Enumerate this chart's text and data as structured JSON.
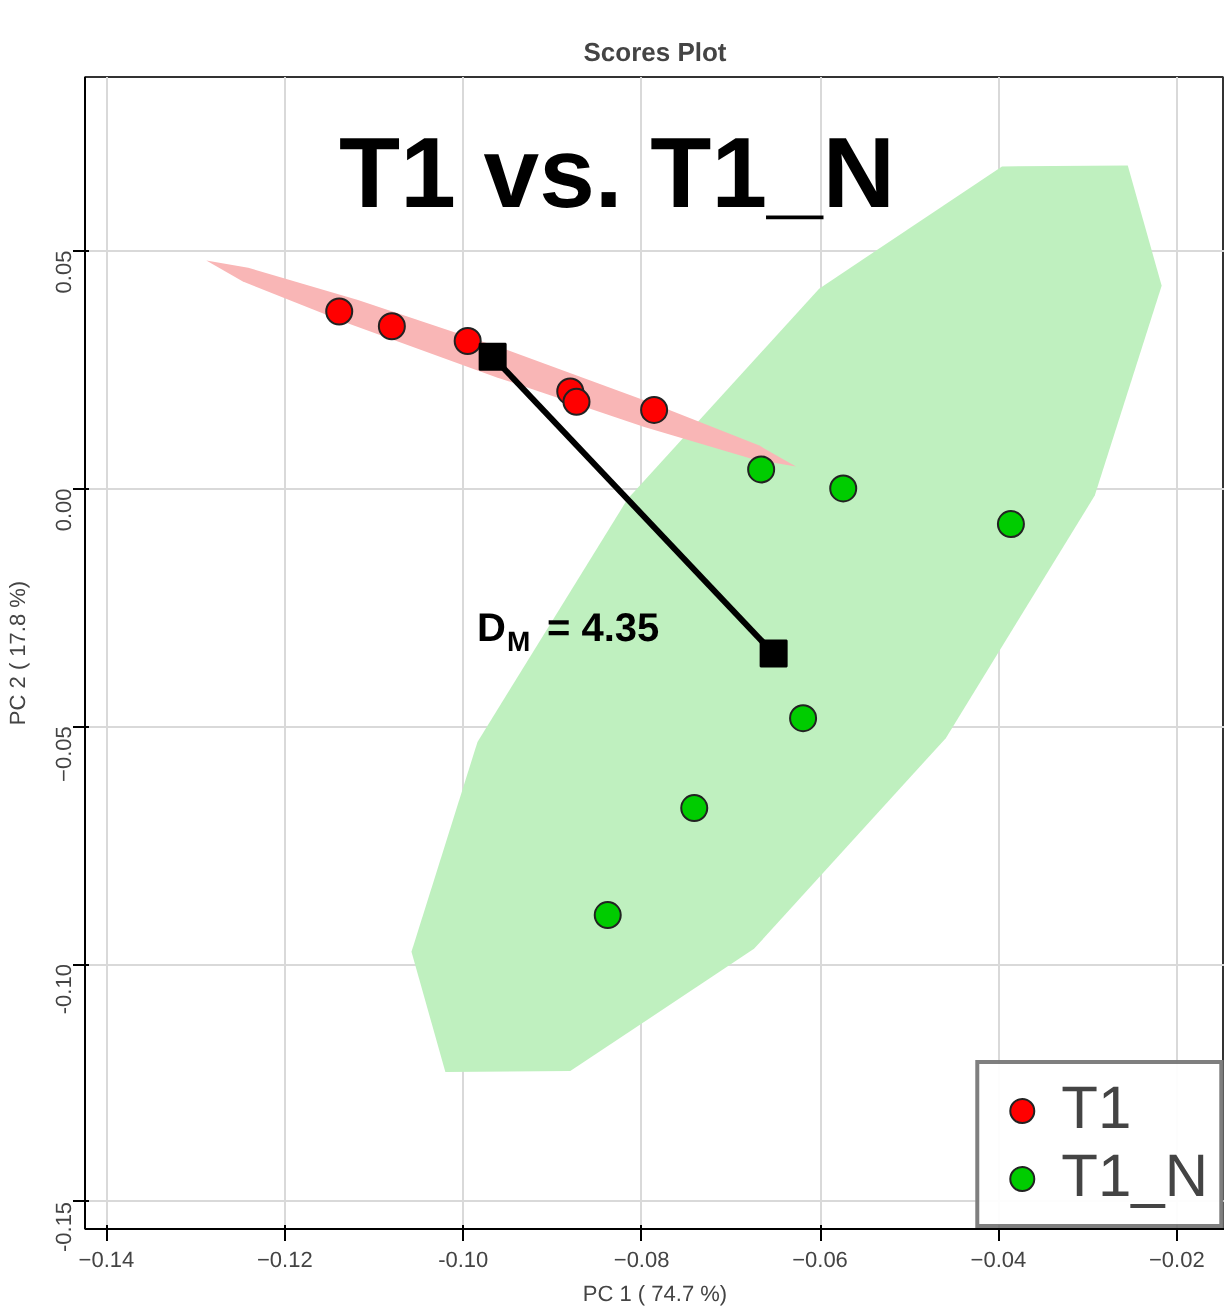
{
  "chart_data": {
    "type": "scatter",
    "title": "Scores Plot",
    "subtitle": "T1 vs. T1_N",
    "xlabel": "PC 1 ( 74.7 %)",
    "ylabel": "PC 2 ( 17.8 %)",
    "xlim": [
      -0.1424,
      -0.0146
    ],
    "ylim": [
      -0.1557,
      0.0865
    ],
    "xticks": [
      -0.14,
      -0.12,
      {
        "value": -0.1,
        "label": "-0.10"
      },
      -0.08,
      -0.06,
      -0.04,
      -0.02
    ],
    "yticks": [
      {
        "value": -0.15,
        "label": "-0.15"
      },
      {
        "value": -0.1,
        "label": "-0.10"
      },
      -0.05,
      {
        "value": 0,
        "label": "0.00"
      },
      0.05
    ],
    "grid": true,
    "legend": "bottom right",
    "marker": "circle",
    "series": [
      {
        "type": "area",
        "marker": "none",
        "color": "#bff0bf",
        "x": [
          -0.0255,
          -0.0217,
          -0.0292,
          -0.0459,
          -0.0674,
          -0.088,
          -0.102,
          -0.1058,
          -0.0984,
          -0.0816,
          -0.0601,
          -0.0396
        ],
        "values": [
          0.0679,
          0.0426,
          -0.0015,
          -0.0525,
          -0.0968,
          -0.1225,
          -0.1227,
          -0.0974,
          -0.0533,
          -0.0023,
          0.042,
          0.0677
        ]
      },
      {
        "type": "area",
        "marker": "none",
        "color": "#f9b6b6",
        "x": [
          -0.0627,
          -0.0674,
          -0.0797,
          -0.0963,
          -0.1128,
          -0.1247,
          -0.1288,
          -0.1241,
          -0.1118,
          -0.0952,
          -0.0788,
          -0.0668
        ],
        "values": [
          0.0046,
          0.0061,
          0.0129,
          0.0234,
          0.0346,
          0.0435,
          0.0479,
          0.0464,
          0.0396,
          0.0292,
          0.0179,
          0.009
        ]
      },
      {
        "name": "T1",
        "color": "#ff0000",
        "x": [
          -0.1139,
          -0.108,
          -0.0995,
          -0.088,
          -0.0873,
          -0.0786
        ],
        "values": [
          0.0372,
          0.0341,
          0.031,
          0.0204,
          0.0182,
          0.0165
        ]
      },
      {
        "name": "T1_N",
        "color": "#00cc00",
        "x": [
          -0.0666,
          -0.0574,
          -0.0386,
          -0.0619,
          -0.0741,
          -0.0838
        ],
        "values": [
          0.004,
          0.0,
          -0.0075,
          -0.0483,
          -0.0672,
          -0.0897
        ]
      },
      {
        "type": "line",
        "color": "#000000",
        "marker": "square",
        "x": [
          -0.0967,
          -0.0652
        ],
        "values": [
          0.0277,
          -0.0347
        ]
      }
    ],
    "annotations": [
      "D$_{M}$ = 4.35"
    ]
  }
}
